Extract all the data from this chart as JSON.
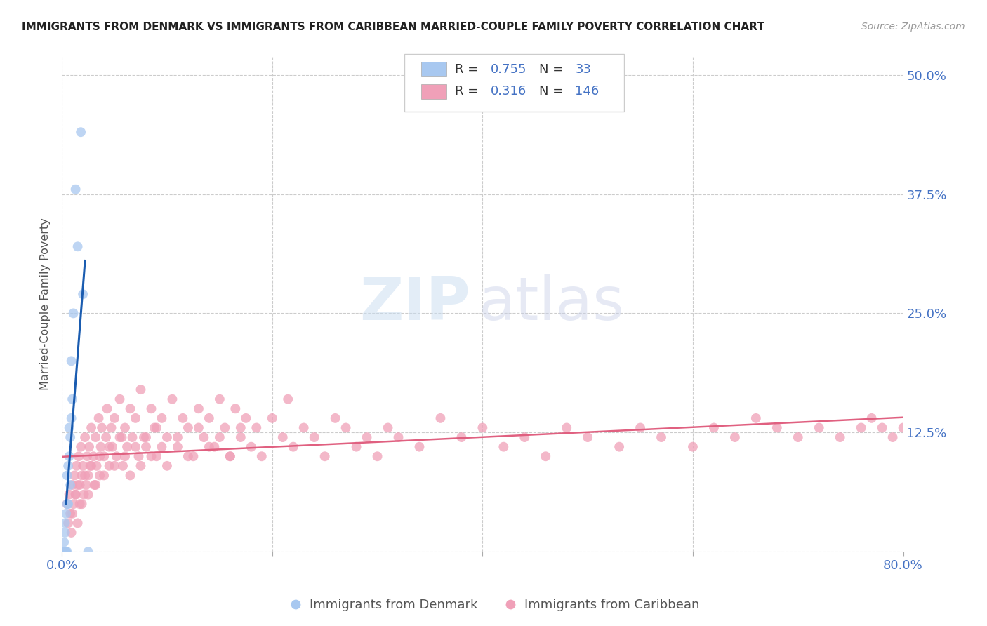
{
  "title": "IMMIGRANTS FROM DENMARK VS IMMIGRANTS FROM CARIBBEAN MARRIED-COUPLE FAMILY POVERTY CORRELATION CHART",
  "source": "Source: ZipAtlas.com",
  "ylabel": "Married-Couple Family Poverty",
  "R1": 0.755,
  "N1": 33,
  "R2": 0.316,
  "N2": 146,
  "color_denmark": "#A8C8F0",
  "color_caribbean": "#F0A0B8",
  "color_denmark_line": "#1A5CB0",
  "color_caribbean_line": "#E06080",
  "background_color": "#FFFFFF",
  "legend_label1": "Immigrants from Denmark",
  "legend_label2": "Immigrants from Caribbean",
  "xlim": [
    0.0,
    0.8
  ],
  "ylim": [
    0.0,
    0.52
  ],
  "ytick_values": [
    0.0,
    0.125,
    0.25,
    0.375,
    0.5
  ],
  "dk_x": [
    0.001,
    0.001,
    0.001,
    0.002,
    0.002,
    0.002,
    0.002,
    0.002,
    0.003,
    0.003,
    0.003,
    0.003,
    0.004,
    0.004,
    0.004,
    0.005,
    0.005,
    0.005,
    0.006,
    0.006,
    0.007,
    0.007,
    0.008,
    0.008,
    0.009,
    0.009,
    0.01,
    0.011,
    0.013,
    0.015,
    0.018,
    0.02,
    0.025
  ],
  "dk_y": [
    0.0,
    0.0,
    0.0,
    0.0,
    0.0,
    0.0,
    0.0,
    0.01,
    0.0,
    0.0,
    0.02,
    0.03,
    0.0,
    0.0,
    0.04,
    0.0,
    0.05,
    0.08,
    0.05,
    0.09,
    0.1,
    0.13,
    0.07,
    0.12,
    0.14,
    0.2,
    0.16,
    0.25,
    0.38,
    0.32,
    0.44,
    0.27,
    0.0
  ],
  "cb_x": [
    0.005,
    0.006,
    0.007,
    0.008,
    0.009,
    0.01,
    0.011,
    0.012,
    0.013,
    0.014,
    0.015,
    0.016,
    0.017,
    0.018,
    0.019,
    0.02,
    0.021,
    0.022,
    0.023,
    0.024,
    0.025,
    0.026,
    0.027,
    0.028,
    0.03,
    0.031,
    0.032,
    0.033,
    0.035,
    0.036,
    0.037,
    0.038,
    0.04,
    0.042,
    0.043,
    0.045,
    0.047,
    0.048,
    0.05,
    0.052,
    0.055,
    0.057,
    0.058,
    0.06,
    0.062,
    0.065,
    0.067,
    0.07,
    0.073,
    0.075,
    0.078,
    0.08,
    0.085,
    0.088,
    0.09,
    0.095,
    0.1,
    0.105,
    0.11,
    0.115,
    0.12,
    0.125,
    0.13,
    0.135,
    0.14,
    0.145,
    0.15,
    0.155,
    0.16,
    0.165,
    0.17,
    0.175,
    0.18,
    0.185,
    0.19,
    0.2,
    0.21,
    0.215,
    0.22,
    0.23,
    0.24,
    0.25,
    0.26,
    0.27,
    0.28,
    0.29,
    0.3,
    0.31,
    0.32,
    0.34,
    0.36,
    0.38,
    0.4,
    0.42,
    0.44,
    0.46,
    0.48,
    0.5,
    0.53,
    0.55,
    0.57,
    0.6,
    0.62,
    0.64,
    0.66,
    0.68,
    0.7,
    0.72,
    0.74,
    0.76,
    0.77,
    0.78,
    0.79,
    0.8,
    0.81,
    0.82,
    0.01,
    0.013,
    0.015,
    0.017,
    0.019,
    0.022,
    0.025,
    0.028,
    0.032,
    0.036,
    0.04,
    0.045,
    0.05,
    0.055,
    0.06,
    0.065,
    0.07,
    0.075,
    0.08,
    0.085,
    0.09,
    0.095,
    0.1,
    0.11,
    0.12,
    0.13,
    0.14,
    0.15,
    0.16,
    0.17
  ],
  "cb_y": [
    0.05,
    0.03,
    0.06,
    0.04,
    0.02,
    0.07,
    0.05,
    0.08,
    0.06,
    0.09,
    0.07,
    0.1,
    0.05,
    0.11,
    0.08,
    0.09,
    0.06,
    0.12,
    0.07,
    0.1,
    0.08,
    0.11,
    0.09,
    0.13,
    0.1,
    0.07,
    0.12,
    0.09,
    0.14,
    0.08,
    0.11,
    0.13,
    0.1,
    0.12,
    0.15,
    0.09,
    0.13,
    0.11,
    0.14,
    0.1,
    0.16,
    0.12,
    0.09,
    0.13,
    0.11,
    0.15,
    0.12,
    0.14,
    0.1,
    0.17,
    0.12,
    0.11,
    0.15,
    0.13,
    0.1,
    0.14,
    0.12,
    0.16,
    0.11,
    0.14,
    0.13,
    0.1,
    0.15,
    0.12,
    0.14,
    0.11,
    0.16,
    0.13,
    0.1,
    0.15,
    0.12,
    0.14,
    0.11,
    0.13,
    0.1,
    0.14,
    0.12,
    0.16,
    0.11,
    0.13,
    0.12,
    0.1,
    0.14,
    0.13,
    0.11,
    0.12,
    0.1,
    0.13,
    0.12,
    0.11,
    0.14,
    0.12,
    0.13,
    0.11,
    0.12,
    0.1,
    0.13,
    0.12,
    0.11,
    0.13,
    0.12,
    0.11,
    0.13,
    0.12,
    0.14,
    0.13,
    0.12,
    0.13,
    0.12,
    0.13,
    0.14,
    0.13,
    0.12,
    0.13,
    0.14,
    0.13,
    0.04,
    0.06,
    0.03,
    0.07,
    0.05,
    0.08,
    0.06,
    0.09,
    0.07,
    0.1,
    0.08,
    0.11,
    0.09,
    0.12,
    0.1,
    0.08,
    0.11,
    0.09,
    0.12,
    0.1,
    0.13,
    0.11,
    0.09,
    0.12,
    0.1,
    0.13,
    0.11,
    0.12,
    0.1,
    0.13
  ]
}
